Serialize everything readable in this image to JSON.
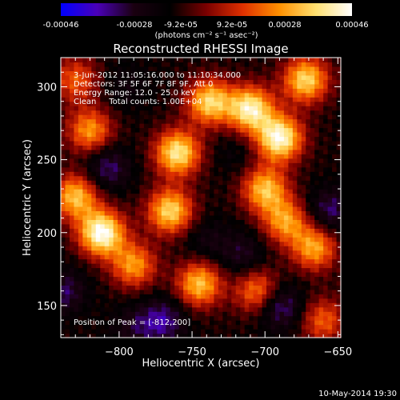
{
  "colorbar": {
    "ticks": [
      "-0.00046",
      "-0.00028",
      "-9.2e-05",
      "9.2e-05",
      "0.00028",
      "0.00046"
    ],
    "tick_values": [
      -0.00046,
      -0.00028,
      -9.2e-05,
      9.2e-05,
      0.00028,
      0.00046
    ],
    "range": [
      -0.00046,
      0.00046
    ],
    "unit_label": "(photons cm⁻² s⁻¹ asec⁻²)",
    "colors": [
      "#0000ff",
      "#4a00b8",
      "#1a0010",
      "#000000",
      "#7a0000",
      "#e03000",
      "#ff9000",
      "#ffe070",
      "#ffffff"
    ]
  },
  "info": {
    "line1": "3-Jun-2012 11:05:16.000 to 11:10:34.000",
    "line2": "Detectors: 3F 5F 6F 7F 8F 9F, Att 0",
    "line3": "Energy Range: 12.0 - 25.0 keV",
    "line4": "Clean     Total counts: 1.00E+04",
    "peak": "Position of Peak = [-812,200]"
  },
  "footer": {
    "timestamp": "10-May-2014 19:30"
  },
  "chart_data": {
    "type": "heatmap",
    "title": "Reconstructed RHESSI Image",
    "xlabel": "Heliocentric X (arcsec)",
    "ylabel": "Heliocentric Y (arcsec)",
    "xlim": [
      -840,
      -648
    ],
    "ylim": [
      128,
      320
    ],
    "x_ticks": [
      -800,
      -750,
      -700,
      -650
    ],
    "x_tick_labels": [
      "−800",
      "−750",
      "−700",
      "−650"
    ],
    "y_ticks": [
      150,
      200,
      250,
      300
    ],
    "y_tick_labels": [
      "150",
      "200",
      "250",
      "300"
    ],
    "grid": false,
    "peak_position": [
      -812,
      200
    ],
    "hotspots": [
      {
        "x": -812,
        "y": 200,
        "v": 0.00046
      },
      {
        "x": -830,
        "y": 225,
        "v": 0.0003
      },
      {
        "x": -820,
        "y": 270,
        "v": 0.00024
      },
      {
        "x": -765,
        "y": 215,
        "v": 0.00034
      },
      {
        "x": -790,
        "y": 178,
        "v": 0.00024
      },
      {
        "x": -745,
        "y": 165,
        "v": 0.0003
      },
      {
        "x": -760,
        "y": 255,
        "v": 0.00038
      },
      {
        "x": -738,
        "y": 290,
        "v": 0.00034
      },
      {
        "x": -710,
        "y": 285,
        "v": 0.0004
      },
      {
        "x": -690,
        "y": 265,
        "v": 0.00044
      },
      {
        "x": -672,
        "y": 305,
        "v": 0.00034
      },
      {
        "x": -700,
        "y": 230,
        "v": 0.0003
      },
      {
        "x": -686,
        "y": 208,
        "v": 0.00024
      },
      {
        "x": -666,
        "y": 190,
        "v": 0.00026
      },
      {
        "x": -705,
        "y": 160,
        "v": 0.00022
      },
      {
        "x": -660,
        "y": 140,
        "v": 0.00016
      },
      {
        "x": -830,
        "y": 305,
        "v": 0.00016
      },
      {
        "x": -740,
        "y": 195,
        "v": -0.0002
      },
      {
        "x": -770,
        "y": 140,
        "v": -0.00032
      },
      {
        "x": -808,
        "y": 245,
        "v": -0.0003
      },
      {
        "x": -690,
        "y": 150,
        "v": -0.00034
      },
      {
        "x": -838,
        "y": 160,
        "v": -0.00028
      },
      {
        "x": -715,
        "y": 185,
        "v": -0.00024
      },
      {
        "x": -655,
        "y": 215,
        "v": -0.0003
      },
      {
        "x": -795,
        "y": 300,
        "v": -0.00018
      },
      {
        "x": -720,
        "y": 255,
        "v": -0.00016
      },
      {
        "x": -790,
        "y": 135,
        "v": -0.00022
      }
    ],
    "background_level": -0.0001
  }
}
